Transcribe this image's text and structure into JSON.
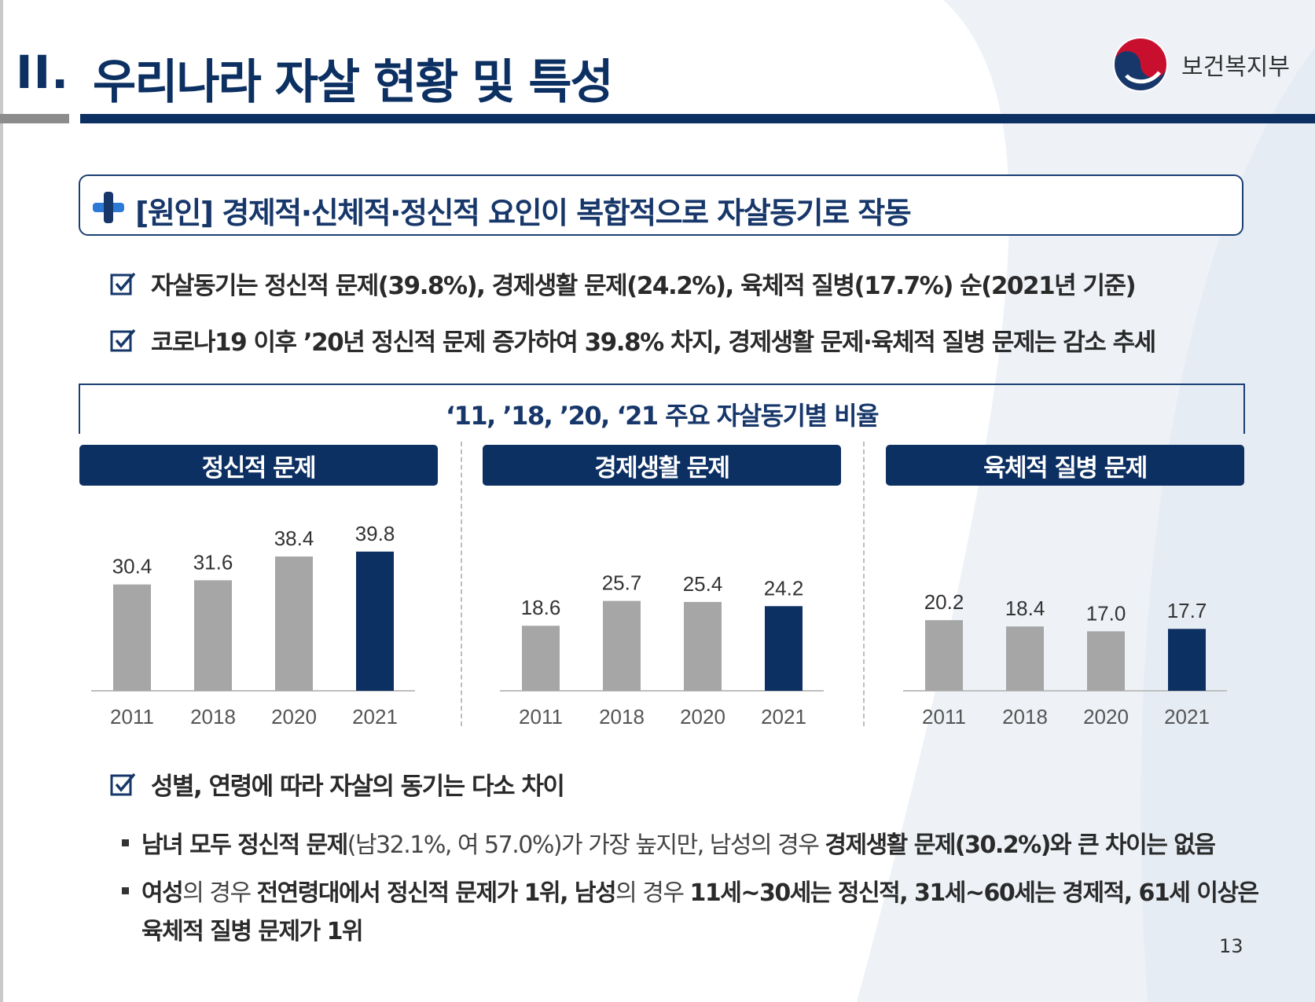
{
  "header": {
    "section_number": "II.",
    "title": "우리나라 자살 현황 및 특성",
    "logo_text": "보건복지부"
  },
  "headline": "[원인] 경제적·신체적·정신적 요인이 복합적으로 자살동기로 작동",
  "bullets": [
    "자살동기는 정신적 문제(39.8%), 경제생활 문제(24.2%), 육체적 질병(17.7%) 순(2021년 기준)",
    "코로나19 이후 ’20년 정신적 문제 증가하여 39.8% 차지, 경제생활 문제·육체적 질병 문제는 감소 추세"
  ],
  "chart_section": {
    "title": "‘11, ’18, ’20, ‘21 주요 자살동기별 비율",
    "panels": [
      "정신적 문제",
      "경제생활 문제",
      "육체적 질병 문제"
    ]
  },
  "chart_data": [
    {
      "type": "bar",
      "title": "정신적 문제",
      "categories": [
        "2011",
        "2018",
        "2020",
        "2021"
      ],
      "values": [
        30.4,
        31.6,
        38.4,
        39.8
      ],
      "labels": [
        "30.4",
        "31.6",
        "38.4",
        "39.8"
      ],
      "highlight": "2021",
      "colors": {
        "default": "#a6a6a6",
        "highlight": "#0d3063"
      }
    },
    {
      "type": "bar",
      "title": "경제생활 문제",
      "categories": [
        "2011",
        "2018",
        "2020",
        "2021"
      ],
      "values": [
        18.6,
        25.7,
        25.4,
        24.2
      ],
      "labels": [
        "18.6",
        "25.7",
        "25.4",
        "24.2"
      ],
      "highlight": "2021",
      "colors": {
        "default": "#a6a6a6",
        "highlight": "#0d3063"
      }
    },
    {
      "type": "bar",
      "title": "육체적 질병 문제",
      "categories": [
        "2011",
        "2018",
        "2020",
        "2021"
      ],
      "values": [
        20.2,
        18.4,
        17.0,
        17.7
      ],
      "labels": [
        "20.2",
        "18.4",
        "17.0",
        "17.7"
      ],
      "highlight": "2021",
      "colors": {
        "default": "#a6a6a6",
        "highlight": "#0d3063"
      }
    }
  ],
  "gender_age": {
    "heading": "성별, 연령에 따라 자살의 동기는 다소 차이",
    "line1": {
      "a": "남녀 모두 정신적 문제",
      "b": "(남32.1%, 여 57.0%)가 가장 높지만, 남성의 경우 ",
      "c": "경제생활 문제(30.2%)와 큰 차이는 없음"
    },
    "line2": {
      "a": "여성",
      "b": "의 경우 ",
      "c": "전연령대에서 정신적 문제가 1위, 남성",
      "d": "의 경우 ",
      "e": "11세~30세는 정신적, 31세~60세는 경제적, 61세 이상은"
    },
    "line3": "육체적 질병 문제가 1위"
  },
  "page_number": "13",
  "colors": {
    "navy": "#0d3063",
    "gray_bar": "#a6a6a6"
  }
}
